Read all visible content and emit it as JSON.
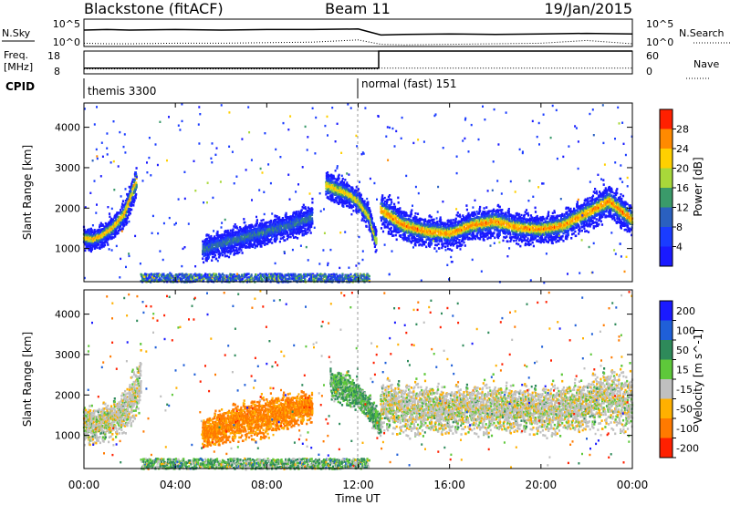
{
  "header": {
    "station": "Blackstone (fitACF)",
    "beam": "Beam 11",
    "date": "19/Jan/2015"
  },
  "noise_panel": {
    "left_label": "N.Sky",
    "right_label": "N.Search",
    "left_ticks": [
      "10^5",
      "10^0"
    ],
    "right_ticks": [
      "10^5",
      "10^0"
    ]
  },
  "freq_panel": {
    "left_label_1": "Freq.",
    "left_label_2": "[MHz]",
    "left_ticks": [
      "18",
      "8"
    ],
    "right_label": "Nave",
    "right_ticks": [
      "60",
      "0"
    ]
  },
  "cpid_panel": {
    "label": "CPID",
    "modes": [
      {
        "name": "themis 3300",
        "start_hour": 0
      },
      {
        "name": "normal (fast) 151",
        "start_hour": 12
      }
    ]
  },
  "x_axis": {
    "title": "Time UT",
    "ticks": [
      "00:00",
      "04:00",
      "08:00",
      "12:00",
      "16:00",
      "20:00",
      "00:00"
    ]
  },
  "power_panel": {
    "ylabel": "Slant Range [km]",
    "yticks": [
      "1000",
      "2000",
      "3000",
      "4000"
    ],
    "colorbar_label": "Power [dB]",
    "colorbar_ticks": [
      "4",
      "8",
      "12",
      "16",
      "20",
      "24",
      "28"
    ]
  },
  "velocity_panel": {
    "ylabel": "Slant Range [km]",
    "yticks": [
      "1000",
      "2000",
      "3000",
      "4000"
    ],
    "colorbar_label": "Velocity [m s^-1]",
    "colorbar_ticks": [
      "200",
      "100",
      "50",
      "15",
      "-15",
      "-50",
      "-100",
      "-200"
    ]
  },
  "chart_data": [
    {
      "type": "line",
      "title": "N.Sky / N.Search",
      "x_unit": "hours UT",
      "x": [
        0,
        1,
        2,
        4,
        6,
        8,
        10,
        12,
        13,
        14,
        16,
        18,
        20,
        22,
        24
      ],
      "series": [
        {
          "name": "N.Sky",
          "style": "solid",
          "values": [
            3.0,
            3.1,
            3.0,
            3.1,
            3.0,
            3.1,
            3.1,
            3.2,
            2.1,
            2.2,
            2.3,
            2.2,
            2.3,
            2.4,
            2.3
          ]
        },
        {
          "name": "N.Search",
          "style": "dotted",
          "values": [
            0.6,
            0.5,
            0.5,
            0.6,
            0.6,
            0.7,
            0.8,
            1.2,
            0.4,
            0.3,
            0.4,
            0.5,
            0.6,
            1.1,
            0.5
          ]
        }
      ],
      "ylim": [
        0,
        5
      ]
    },
    {
      "type": "line",
      "title": "Freq. / Nave",
      "x_unit": "hours UT",
      "x": [
        0,
        12.9,
        12.9,
        24
      ],
      "series": [
        {
          "name": "Freq.",
          "style": "solid",
          "values": [
            10.5,
            10.5,
            18,
            18
          ]
        },
        {
          "name": "Nave",
          "style": "dotted",
          "values": [
            13,
            13,
            15,
            15
          ]
        }
      ],
      "ylim_freq": [
        8,
        18
      ],
      "ylim_nave": [
        0,
        60
      ]
    },
    {
      "type": "heatmap",
      "title": "Power [dB]",
      "xlabel": "Time UT",
      "ylabel": "Slant Range [km]",
      "xlim": [
        0,
        24
      ],
      "ylim": [
        180,
        4600
      ],
      "clim": [
        0,
        30
      ],
      "colorbar_ticks": [
        4,
        8,
        12,
        16,
        20,
        24,
        28
      ],
      "scatter_bands": [
        {
          "t": [
            0.0,
            0.4,
            0.8,
            1.3,
            1.8,
            2.3
          ],
          "r": [
            1300,
            1250,
            1350,
            1550,
            1900,
            2700
          ],
          "width": [
            250,
            250,
            250,
            280,
            320,
            400
          ],
          "peak": 24
        },
        {
          "t": [
            5.2,
            6.0,
            7.0,
            8.0,
            9.0,
            10.0
          ],
          "r": [
            1000,
            1150,
            1300,
            1450,
            1600,
            1800
          ],
          "width": [
            300,
            300,
            300,
            300,
            300,
            300
          ],
          "peak": 12
        },
        {
          "t": [
            10.6,
            11.0,
            11.5,
            12.0,
            12.5,
            12.8
          ],
          "r": [
            2600,
            2500,
            2400,
            2200,
            1800,
            1200
          ],
          "width": [
            350,
            350,
            300,
            300,
            300,
            280
          ],
          "peak": 22
        },
        {
          "t": [
            13.0,
            14.0,
            15.0,
            16.0,
            17.0,
            18.0,
            19.0,
            20.0,
            21.0,
            22.0,
            23.0,
            24.0
          ],
          "r": [
            2000,
            1600,
            1450,
            1400,
            1600,
            1700,
            1550,
            1500,
            1600,
            1900,
            2200,
            1750
          ],
          "width": [
            400,
            380,
            360,
            340,
            360,
            380,
            360,
            340,
            360,
            380,
            400,
            380
          ],
          "peak": 26
        }
      ],
      "ground_band": {
        "r": [
          200,
          400
        ],
        "t": [
          2.5,
          12.5
        ],
        "peak": 10
      }
    },
    {
      "type": "heatmap",
      "title": "Velocity [m s^-1]",
      "xlabel": "Time UT",
      "ylabel": "Slant Range [km]",
      "xlim": [
        0,
        24
      ],
      "ylim": [
        180,
        4600
      ],
      "color_levels": [
        200,
        100,
        50,
        15,
        -15,
        -50,
        -100,
        -200
      ],
      "scatter_bands": [
        {
          "t": [
            0.0,
            0.5,
            1.0,
            1.5,
            2.0,
            2.5
          ],
          "r": [
            1300,
            1300,
            1350,
            1500,
            1800,
            2400
          ],
          "width": [
            450,
            450,
            450,
            450,
            500,
            600
          ],
          "vel": 0
        },
        {
          "t": [
            5.2,
            6.0,
            7.0,
            8.0,
            9.0,
            10.0
          ],
          "r": [
            1050,
            1250,
            1400,
            1500,
            1650,
            1750
          ],
          "width": [
            350,
            400,
            450,
            450,
            400,
            350
          ],
          "vel": -60
        },
        {
          "t": [
            10.8,
            11.5,
            12.0,
            12.5,
            13.0
          ],
          "r": [
            2300,
            2200,
            2000,
            1700,
            1300
          ],
          "width": [
            350,
            350,
            300,
            300,
            280
          ],
          "vel": 30
        },
        {
          "t": [
            13.0,
            14.0,
            15.0,
            16.0,
            17.0,
            18.0,
            19.0,
            20.0,
            21.0,
            22.0,
            23.0,
            24.0
          ],
          "r": [
            1800,
            1700,
            1700,
            1650,
            1700,
            1700,
            1700,
            1650,
            1700,
            1800,
            2000,
            1800
          ],
          "width": [
            600,
            600,
            550,
            550,
            550,
            550,
            550,
            550,
            550,
            600,
            700,
            650
          ],
          "vel": 0
        }
      ],
      "ground_band": {
        "r": [
          200,
          450
        ],
        "t": [
          2.5,
          12.5
        ],
        "vel": 30
      }
    }
  ]
}
